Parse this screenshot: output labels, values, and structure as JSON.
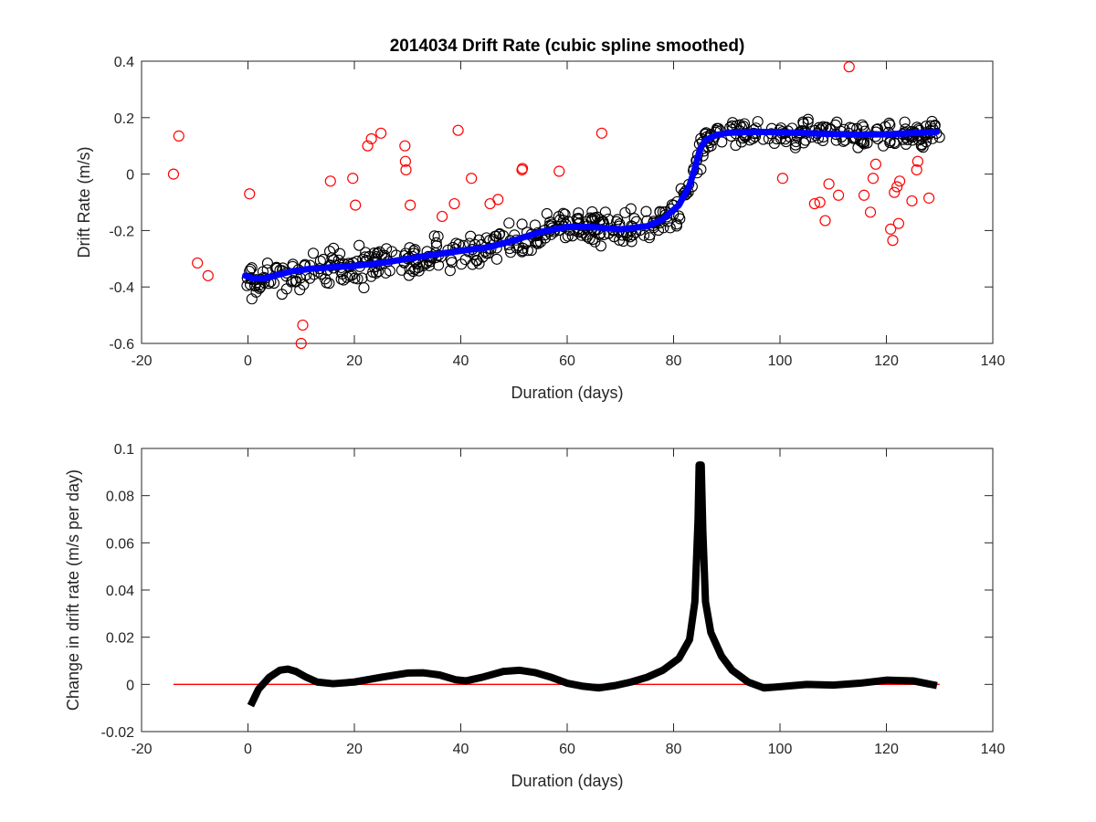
{
  "chart_data": [
    {
      "type": "scatter",
      "title": "2014034  Drift Rate (cubic spline smoothed)",
      "xlabel": "Duration (days)",
      "ylabel": "Drift Rate  (m/s)",
      "xlim": [
        -20,
        140
      ],
      "ylim": [
        -0.6,
        0.4
      ],
      "xticks": [
        -20,
        0,
        20,
        40,
        60,
        80,
        100,
        120,
        140
      ],
      "yticks": [
        -0.6,
        -0.4,
        -0.2,
        0,
        0.2,
        0.4
      ],
      "grid": false,
      "colors": {
        "kept": "#000000",
        "outliers": "#ff0000",
        "spline": "#0000ff"
      },
      "series": [
        {
          "kind": "outliers",
          "marker": "open-circle",
          "points": [
            [
              -14,
              0
            ],
            [
              -13,
              0.135
            ],
            [
              -9.5,
              -0.315
            ],
            [
              -7.5,
              -0.36
            ],
            [
              0.3,
              -0.07
            ],
            [
              10,
              -0.6
            ],
            [
              10.3,
              -0.535
            ],
            [
              15.5,
              -0.025
            ],
            [
              19.7,
              -0.015
            ],
            [
              20.2,
              -0.11
            ],
            [
              22.5,
              0.1
            ],
            [
              23.2,
              0.125
            ],
            [
              25,
              0.145
            ],
            [
              29.5,
              0.1
            ],
            [
              29.6,
              0.045
            ],
            [
              29.7,
              0.015
            ],
            [
              30.5,
              -0.11
            ],
            [
              36.5,
              -0.15
            ],
            [
              38.8,
              -0.105
            ],
            [
              39.5,
              0.155
            ],
            [
              42,
              -0.015
            ],
            [
              45.5,
              -0.105
            ],
            [
              47,
              -0.09
            ],
            [
              51.5,
              0.015
            ],
            [
              51.6,
              0.02
            ],
            [
              58.5,
              0.01
            ],
            [
              66.5,
              0.145
            ],
            [
              100.5,
              -0.015
            ],
            [
              106.5,
              -0.105
            ],
            [
              107.5,
              -0.1
            ],
            [
              108.5,
              -0.165
            ],
            [
              109.2,
              -0.035
            ],
            [
              111,
              -0.075
            ],
            [
              113,
              0.38
            ],
            [
              115.8,
              -0.075
            ],
            [
              117,
              -0.135
            ],
            [
              117.5,
              -0.015
            ],
            [
              118,
              0.035
            ],
            [
              120.8,
              -0.195
            ],
            [
              121.2,
              -0.235
            ],
            [
              121.5,
              -0.065
            ],
            [
              122,
              -0.045
            ],
            [
              122.3,
              -0.175
            ],
            [
              122.5,
              -0.025
            ],
            [
              124.8,
              -0.095
            ],
            [
              125.7,
              0.015
            ],
            [
              125.9,
              0.045
            ],
            [
              128,
              -0.085
            ]
          ]
        },
        {
          "kind": "spline",
          "points": [
            [
              -0.5,
              -0.36
            ],
            [
              1,
              -0.37
            ],
            [
              3,
              -0.37
            ],
            [
              5,
              -0.36
            ],
            [
              8,
              -0.345
            ],
            [
              12,
              -0.335
            ],
            [
              16,
              -0.33
            ],
            [
              20,
              -0.325
            ],
            [
              25,
              -0.315
            ],
            [
              30,
              -0.3
            ],
            [
              35,
              -0.285
            ],
            [
              40,
              -0.272
            ],
            [
              45,
              -0.26
            ],
            [
              50,
              -0.235
            ],
            [
              55,
              -0.205
            ],
            [
              60,
              -0.187
            ],
            [
              65,
              -0.188
            ],
            [
              70,
              -0.196
            ],
            [
              75,
              -0.185
            ],
            [
              78,
              -0.16
            ],
            [
              81,
              -0.11
            ],
            [
              83,
              -0.04
            ],
            [
              84,
              0.02
            ],
            [
              85,
              0.09
            ],
            [
              86,
              0.12
            ],
            [
              88,
              0.138
            ],
            [
              90,
              0.146
            ],
            [
              95,
              0.15
            ],
            [
              100,
              0.148
            ],
            [
              105,
              0.145
            ],
            [
              110,
              0.142
            ],
            [
              115,
              0.14
            ],
            [
              120,
              0.141
            ],
            [
              125,
              0.145
            ],
            [
              129.5,
              0.15
            ]
          ]
        }
      ]
    },
    {
      "type": "line",
      "xlabel": "Duration (days)",
      "ylabel": "Change in drift rate (m/s per day)",
      "xlim": [
        -20,
        140
      ],
      "ylim": [
        -0.02,
        0.1
      ],
      "xticks": [
        -20,
        0,
        20,
        40,
        60,
        80,
        100,
        120,
        140
      ],
      "yticks": [
        -0.02,
        0,
        0.02,
        0.04,
        0.06,
        0.08,
        0.1
      ],
      "yticklabels": [
        "-0.02",
        "0",
        "0.02",
        "0.04",
        "0.06",
        "0.08",
        "0.1"
      ],
      "grid": false,
      "colors": {
        "derivative": "#000000",
        "zero_line": "#ff0000"
      },
      "series": [
        {
          "kind": "derivative",
          "points": [
            [
              0.5,
              -0.009
            ],
            [
              2,
              -0.002
            ],
            [
              4,
              0.003
            ],
            [
              6,
              0.006
            ],
            [
              7.5,
              0.0065
            ],
            [
              9,
              0.0055
            ],
            [
              11,
              0.003
            ],
            [
              13,
              0.001
            ],
            [
              16,
              0.0003
            ],
            [
              20,
              0.001
            ],
            [
              25,
              0.003
            ],
            [
              30,
              0.0048
            ],
            [
              33,
              0.0049
            ],
            [
              36,
              0.004
            ],
            [
              39,
              0.002
            ],
            [
              41,
              0.0015
            ],
            [
              44,
              0.003
            ],
            [
              48,
              0.0055
            ],
            [
              51,
              0.006
            ],
            [
              54,
              0.005
            ],
            [
              57,
              0.003
            ],
            [
              60,
              0.0005
            ],
            [
              63,
              -0.0008
            ],
            [
              66,
              -0.0015
            ],
            [
              69,
              -0.0005
            ],
            [
              72,
              0.001
            ],
            [
              75,
              0.003
            ],
            [
              78,
              0.006
            ],
            [
              81,
              0.011
            ],
            [
              83,
              0.019
            ],
            [
              84,
              0.035
            ],
            [
              84.6,
              0.07
            ],
            [
              84.8,
              0.093
            ],
            [
              85.2,
              0.093
            ],
            [
              85.5,
              0.065
            ],
            [
              86,
              0.035
            ],
            [
              87,
              0.022
            ],
            [
              89,
              0.012
            ],
            [
              91,
              0.006
            ],
            [
              94,
              0.001
            ],
            [
              97,
              -0.0015
            ],
            [
              100,
              -0.001
            ],
            [
              105,
              0
            ],
            [
              110,
              -0.0003
            ],
            [
              115,
              0.0005
            ],
            [
              120,
              0.0018
            ],
            [
              125,
              0.0015
            ],
            [
              129.5,
              -0.0005
            ]
          ]
        },
        {
          "kind": "zero_line",
          "points": [
            [
              -14,
              0
            ],
            [
              130,
              0
            ]
          ]
        }
      ]
    }
  ]
}
